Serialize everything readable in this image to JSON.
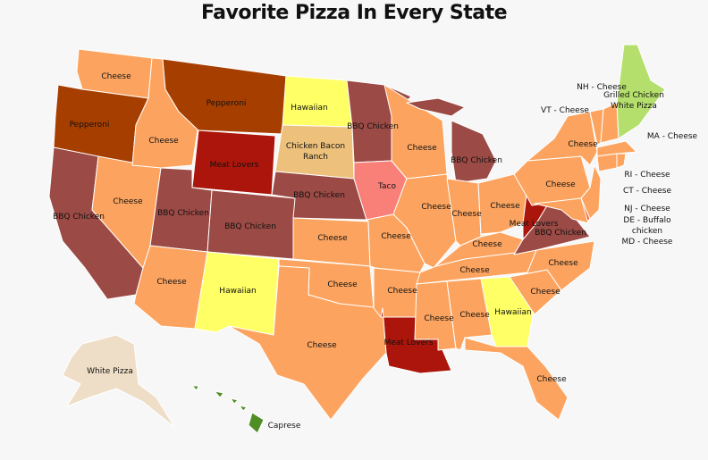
{
  "title": "Favorite Pizza In Every State",
  "colors": {
    "Cheese": "#fca45f",
    "Pepperoni": "#a63e00",
    "BBQ Chicken": "#9b4a45",
    "Meat Lovers": "#ab150b",
    "Hawaiian": "#ffff66",
    "Chicken Bacon Ranch": "#edc17c",
    "Taco": "#f97f79",
    "Grilled Chicken White Pizza": "#b5df6c",
    "White Pizza": "#efdec7",
    "Caprese": "#4f8d25",
    "Buffalo Chicken": "#f2683c"
  },
  "states": [
    {
      "code": "WA",
      "pizza": "Cheese",
      "label": "Cheese"
    },
    {
      "code": "OR",
      "pizza": "Pepperoni",
      "label": "Pepperoni"
    },
    {
      "code": "CA",
      "pizza": "BBQ Chicken",
      "label": "BBQ Chicken"
    },
    {
      "code": "NV",
      "pizza": "Cheese",
      "label": "Cheese"
    },
    {
      "code": "ID",
      "pizza": "Cheese",
      "label": "Cheese"
    },
    {
      "code": "MT",
      "pizza": "Pepperoni",
      "label": "Pepperoni"
    },
    {
      "code": "WY",
      "pizza": "Meat Lovers",
      "label": "Meat Lovers"
    },
    {
      "code": "UT",
      "pizza": "BBQ Chicken",
      "label": "BBQ Chicken"
    },
    {
      "code": "CO",
      "pizza": "BBQ Chicken",
      "label": "BBQ Chicken"
    },
    {
      "code": "AZ",
      "pizza": "Cheese",
      "label": "Cheese"
    },
    {
      "code": "NM",
      "pizza": "Hawaiian",
      "label": "Hawaiian"
    },
    {
      "code": "ND",
      "pizza": "Hawaiian",
      "label": "Hawaiian"
    },
    {
      "code": "SD",
      "pizza": "Chicken Bacon Ranch",
      "label": "Chicken Bacon\nRanch"
    },
    {
      "code": "NE",
      "pizza": "BBQ Chicken",
      "label": "BBQ Chicken"
    },
    {
      "code": "KS",
      "pizza": "Cheese",
      "label": "Cheese"
    },
    {
      "code": "OK",
      "pizza": "Cheese",
      "label": "Cheese"
    },
    {
      "code": "TX",
      "pizza": "Cheese",
      "label": "Cheese"
    },
    {
      "code": "MN",
      "pizza": "BBQ Chicken",
      "label": "BBQ Chicken"
    },
    {
      "code": "IA",
      "pizza": "Taco",
      "label": "Taco"
    },
    {
      "code": "MO",
      "pizza": "Cheese",
      "label": "Cheese"
    },
    {
      "code": "AR",
      "pizza": "Cheese",
      "label": "Cheese"
    },
    {
      "code": "LA",
      "pizza": "Meat Lovers",
      "label": "Meat Lovers"
    },
    {
      "code": "WI",
      "pizza": "Cheese",
      "label": "Cheese"
    },
    {
      "code": "MI",
      "pizza": "BBQ Chicken",
      "label": "BBQ Chicken"
    },
    {
      "code": "IL",
      "pizza": "Cheese",
      "label": "Cheese"
    },
    {
      "code": "IN",
      "pizza": "Cheese",
      "label": "Cheese"
    },
    {
      "code": "OH",
      "pizza": "Cheese",
      "label": "Cheese"
    },
    {
      "code": "KY",
      "pizza": "Cheese",
      "label": "Cheese"
    },
    {
      "code": "TN",
      "pizza": "Cheese",
      "label": "Cheese"
    },
    {
      "code": "MS",
      "pizza": "Cheese",
      "label": "Cheese"
    },
    {
      "code": "AL",
      "pizza": "Cheese",
      "label": "Cheese"
    },
    {
      "code": "GA",
      "pizza": "Hawaiian",
      "label": "Hawaiian"
    },
    {
      "code": "FL",
      "pizza": "Cheese",
      "label": "Cheese"
    },
    {
      "code": "SC",
      "pizza": "Cheese",
      "label": "Cheese"
    },
    {
      "code": "NC",
      "pizza": "Cheese",
      "label": "Cheese"
    },
    {
      "code": "VA",
      "pizza": "BBQ Chicken",
      "label": "BBQ Chicken"
    },
    {
      "code": "WV",
      "pizza": "Meat Lovers",
      "label": "Meat Lovers"
    },
    {
      "code": "PA",
      "pizza": "Cheese",
      "label": "Cheese"
    },
    {
      "code": "NY",
      "pizza": "Cheese",
      "label": "Cheese"
    },
    {
      "code": "VT",
      "pizza": "Cheese",
      "label": "VT - Cheese"
    },
    {
      "code": "NH",
      "pizza": "Cheese",
      "label": "NH - Cheese"
    },
    {
      "code": "ME",
      "pizza": "Grilled Chicken White Pizza",
      "label": "Grilled Chicken\nWhite Pizza"
    },
    {
      "code": "MA",
      "pizza": "Cheese",
      "label": "MA - Cheese"
    },
    {
      "code": "RI",
      "pizza": "Cheese",
      "label": "RI - Cheese"
    },
    {
      "code": "CT",
      "pizza": "Cheese",
      "label": "CT - Cheese"
    },
    {
      "code": "NJ",
      "pizza": "Cheese",
      "label": "NJ - Cheese"
    },
    {
      "code": "DE",
      "pizza": "Buffalo Chicken",
      "label": "DE - Buffalo\nchicken"
    },
    {
      "code": "MD",
      "pizza": "Cheese",
      "label": "MD - Cheese"
    },
    {
      "code": "AK",
      "pizza": "White Pizza",
      "label": "White Pizza"
    },
    {
      "code": "HI",
      "pizza": "Caprese",
      "label": "Caprese"
    }
  ]
}
